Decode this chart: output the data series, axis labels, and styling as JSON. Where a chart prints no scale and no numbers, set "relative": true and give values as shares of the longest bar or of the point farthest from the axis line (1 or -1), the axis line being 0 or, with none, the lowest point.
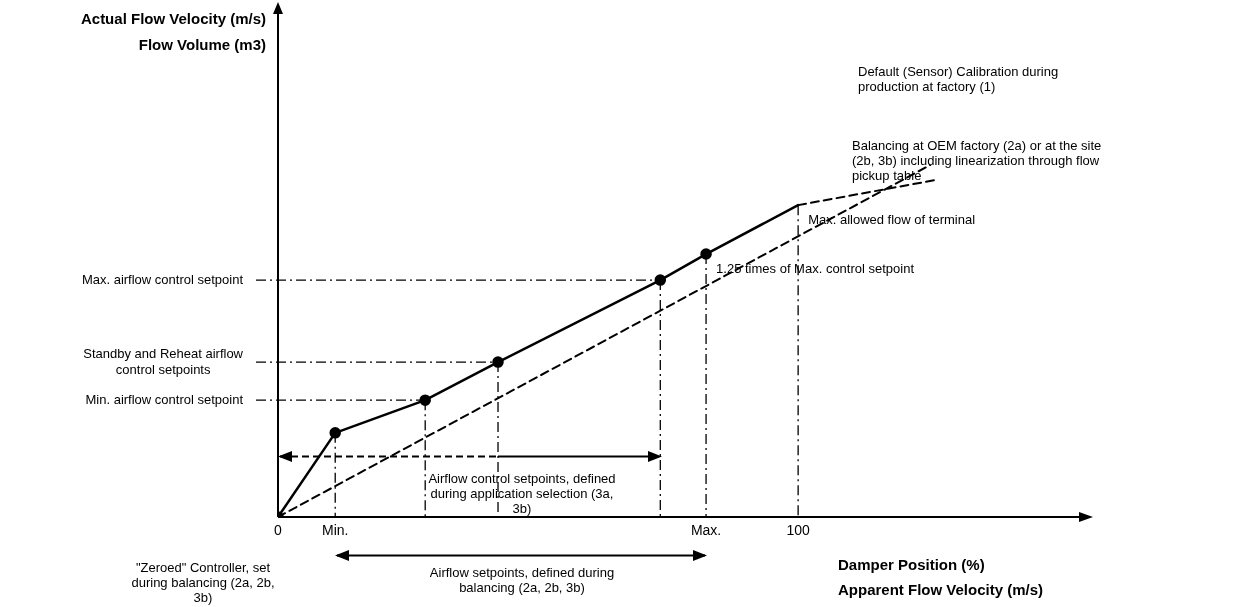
{
  "chart_data": {
    "type": "line",
    "relative": true,
    "xlabel": "Damper Position (%)\nApparent Flow Velocity (m/s)",
    "xlim": [
      0,
      154
    ],
    "xticks": [
      0,
      {
        "value": 11,
        "label": "Min."
      },
      {
        "value": 82.3,
        "label": "Max."
      },
      100
    ],
    "series": [
      {
        "color": "#000000",
        "line_style": "dashed",
        "x": [
          0,
          125.4
        ],
        "values": [
          0,
          1
        ]
      },
      {
        "color": "#000000",
        "line_style": "solid",
        "marker": "circle",
        "x": [
          0,
          11,
          28.3,
          42.3,
          73.5,
          82.3
        ],
        "values": [
          0,
          0.239,
          0.332,
          0.44,
          0.673,
          0.747
        ]
      },
      {
        "color": "#000000",
        "line_style": "solid",
        "x": [
          82.3,
          100
        ],
        "values": [
          0.747,
          0.886
        ]
      },
      {
        "color": "#000000",
        "line_style": "dashed",
        "x": [
          100,
          126.3
        ],
        "values": [
          0.886,
          0.957
        ]
      }
    ],
    "ref_lines": [
      {
        "axis": "y",
        "value": 0.673,
        "label": "Max. airflow control setpoint"
      },
      {
        "axis": "y",
        "value": 0.44,
        "label": "Standby and Reheat airflow control setpoints"
      },
      {
        "axis": "y",
        "value": 0.332,
        "label": "Min. airflow control setpoint"
      },
      {
        "axis": "x",
        "value": 11
      },
      {
        "axis": "x",
        "value": 28.3
      },
      {
        "axis": "x",
        "value": 42.3
      },
      {
        "axis": "x",
        "value": 73.5
      },
      {
        "axis": "x",
        "value": 82.3
      },
      {
        "axis": "x",
        "value": 100
      }
    ],
    "annotations": [
      "Actual Flow Velocity (m/s)\nFlow Volume (m3)",
      "Default (Sensor) Calibration during production at factory (1)",
      "Balancing at OEM factory (2a) or at the site (2b, 3b) including linearization through flow pickup table",
      {
        "text": "Max. allowed flow of terminal",
        "x": 100,
        "y": 0.886
      },
      {
        "text": "1.25 times of Max. control setpoint",
        "x": 82.3,
        "y": 0.747
      },
      "Airflow control setpoints, defined during application selection (3a, 3b)",
      "Airflow setpoints, defined during balancing (2a, 2b, 3b)",
      "\"Zeroed\" Controller, set during balancing (2a, 2b, 3b)"
    ]
  }
}
